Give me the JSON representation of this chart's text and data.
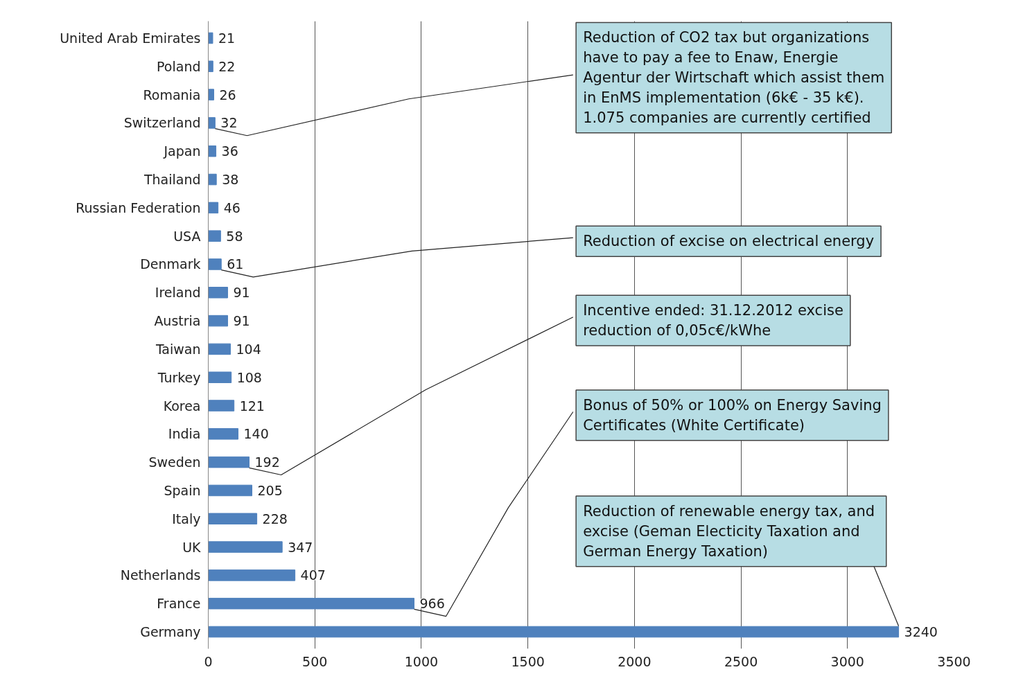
{
  "chart_data": {
    "type": "bar",
    "orientation": "horizontal",
    "categories": [
      "United Arab Emirates",
      "Poland",
      "Romania",
      "Switzerland",
      "Japan",
      "Thailand",
      "Russian Federation",
      "USA",
      "Denmark",
      "Ireland",
      "Austria",
      "Taiwan",
      "Turkey",
      "Korea",
      "India",
      "Sweden",
      "Spain",
      "Italy",
      "UK",
      "Netherlands",
      "France",
      "Germany"
    ],
    "values": [
      21,
      22,
      26,
      32,
      36,
      38,
      46,
      58,
      61,
      91,
      91,
      104,
      108,
      121,
      140,
      192,
      205,
      228,
      347,
      407,
      966,
      3240
    ],
    "color": "#4f81bd",
    "data_labels": true,
    "xlim": [
      0,
      3500
    ],
    "xticks": [
      0,
      500,
      1000,
      1500,
      2000,
      2500,
      3000,
      3500
    ],
    "grid": "x",
    "annotations": [
      {
        "text": "Reduction of CO2 tax but  organizations have to pay a fee to Enaw, Energie Agentur der Wirtschaft which assist them  in EnMS implementation (6k€ - 35 k€). 1.075 companies  are currently certified",
        "x": 32,
        "y": "Switzerland"
      },
      {
        "text": "Reduction of excise on electrical energy",
        "x": 61,
        "y": "Denmark"
      },
      {
        "text": "Incentive ended: 31.12.2012 excise reduction of 0,05c€/kWhe",
        "x": 192,
        "y": "Sweden"
      },
      {
        "text": "Bonus of 50% or 100% on Energy Saving Certificates (White Certificate)",
        "x": 966,
        "y": "France"
      },
      {
        "text": "Reduction of renewable energy tax,  and excise (Geman Electicity Taxation and German Energy Taxation)",
        "x": 3240,
        "y": "Germany"
      }
    ]
  }
}
